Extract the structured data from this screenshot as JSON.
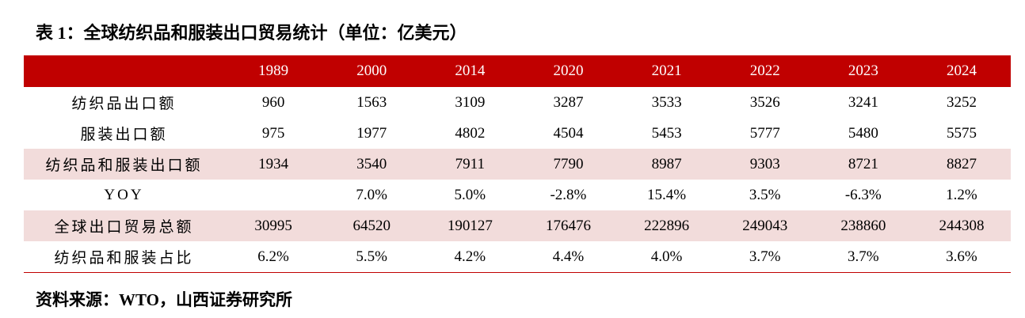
{
  "header": {
    "title": "表 1：全球纺织品和服装出口贸易统计（单位：亿美元）"
  },
  "table": {
    "columns": [
      "1989",
      "2000",
      "2014",
      "2020",
      "2021",
      "2022",
      "2023",
      "2024"
    ],
    "rows": [
      [
        "纺织品出口额",
        "960",
        "1563",
        "3109",
        "3287",
        "3533",
        "3526",
        "3241",
        "3252"
      ],
      [
        "服装出口额",
        "975",
        "1977",
        "4802",
        "4504",
        "5453",
        "5777",
        "5480",
        "5575"
      ],
      [
        "纺织品和服装出口额",
        "1934",
        "3540",
        "7911",
        "7790",
        "8987",
        "9303",
        "8721",
        "8827"
      ],
      [
        "YOY",
        null,
        "7.0%",
        "5.0%",
        "-2.8%",
        "15.4%",
        "3.5%",
        "-6.3%",
        "1.2%"
      ],
      [
        "全球出口贸易总额",
        "30995",
        "64520",
        "190127",
        "176476",
        "222896",
        "249043",
        "238860",
        "244308"
      ],
      [
        "纺织品和服装占比",
        "6.2%",
        "5.5%",
        "4.2%",
        "4.4%",
        "4.0%",
        "3.7%",
        "3.7%",
        "3.6%"
      ]
    ]
  },
  "footer": {
    "source": "资料来源：WTO，山西证券研究所"
  }
}
